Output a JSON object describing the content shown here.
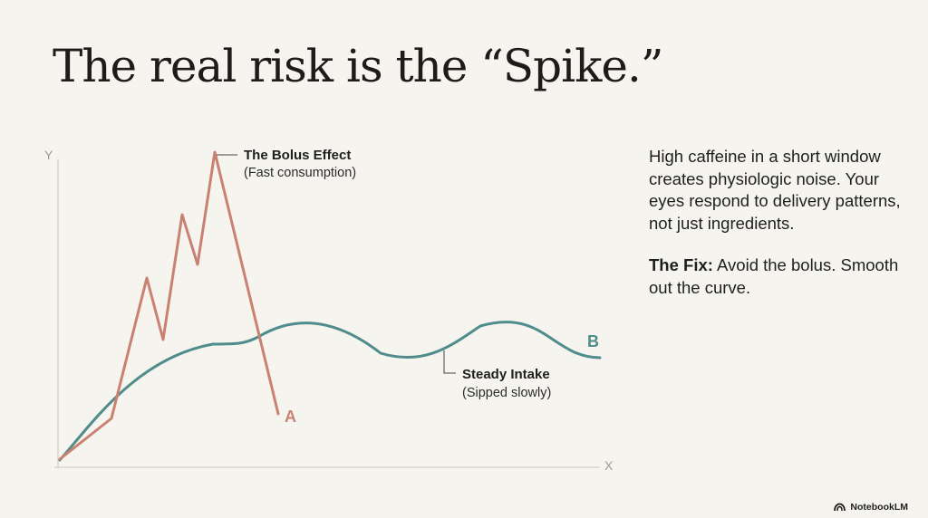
{
  "title": "The real risk is the “Spike.”",
  "chart_data": {
    "type": "line",
    "axes": {
      "x_label": "X",
      "y_label": "Y"
    },
    "series": [
      {
        "name": "A",
        "color": "#c98272",
        "annotation": {
          "label": "The Bolus Effect",
          "sublabel": "(Fast consumption)"
        }
      },
      {
        "name": "B",
        "color": "#4f8d8d",
        "annotation": {
          "label": "Steady Intake",
          "sublabel": "(Sipped slowly)"
        }
      }
    ]
  },
  "side_text": {
    "paragraph": "High caffeine in a short window creates physiologic noise. Your eyes respond to delivery patterns, not just ingredients.",
    "fix_label": "The Fix:",
    "fix_text": "Avoid the bolus. Smooth out the curve."
  },
  "brand": {
    "name": "NotebookLM",
    "icon": "notebooklm-logo-icon"
  }
}
